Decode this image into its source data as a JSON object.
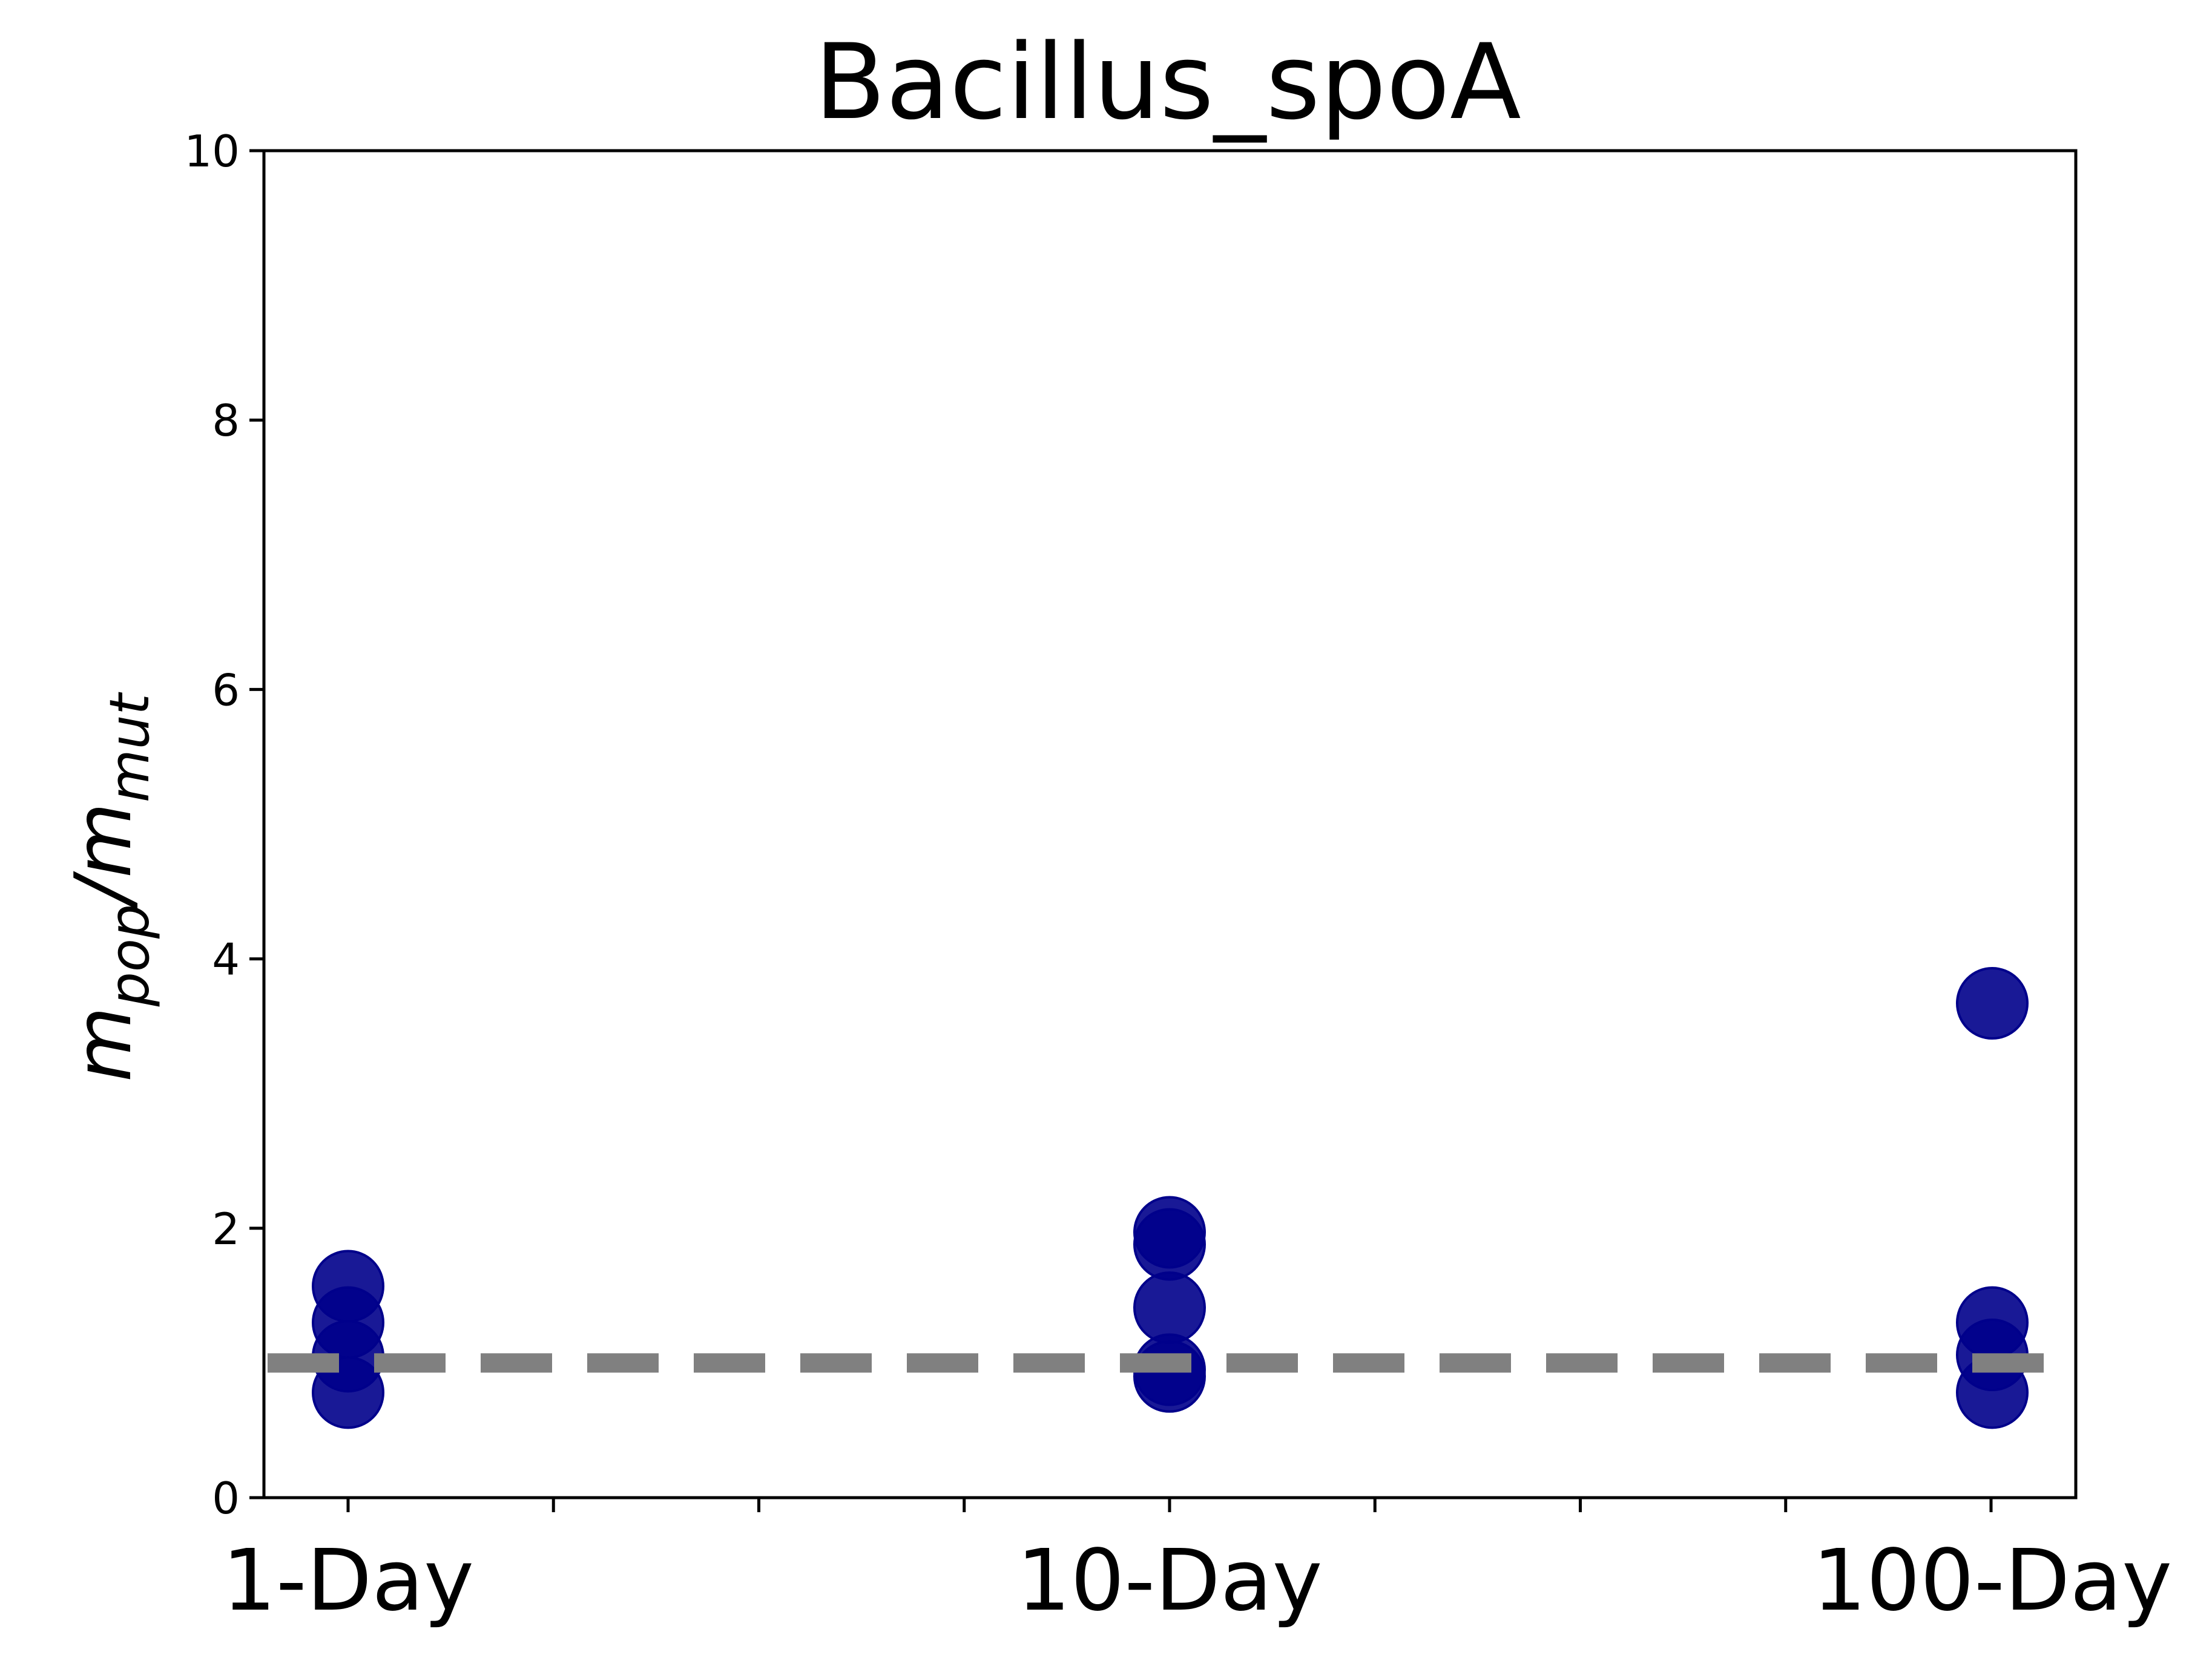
{
  "chart_data": {
    "type": "scatter",
    "title": "Bacillus_spoA",
    "ylabel": {
      "base1": "m",
      "sub1": "pop",
      "sep": "/",
      "base2": "m",
      "sub2": "mut"
    },
    "xlabel": "",
    "categories": [
      "1-Day",
      "10-Day",
      "100-Day"
    ],
    "ylim": [
      0,
      10
    ],
    "yticks": [
      "0",
      "2",
      "4",
      "6",
      "8",
      "10"
    ],
    "series": [
      {
        "points": [
          {
            "category": "1-Day",
            "y": 1.57
          },
          {
            "category": "1-Day",
            "y": 1.3
          },
          {
            "category": "1-Day",
            "y": 1.05
          },
          {
            "category": "1-Day",
            "y": 0.78
          },
          {
            "category": "10-Day",
            "y": 1.97
          },
          {
            "category": "10-Day",
            "y": 1.88
          },
          {
            "category": "10-Day",
            "y": 1.41
          },
          {
            "category": "10-Day",
            "y": 0.95
          },
          {
            "category": "10-Day",
            "y": 0.9
          },
          {
            "category": "100-Day",
            "y": 3.67
          },
          {
            "category": "100-Day",
            "y": 1.3
          },
          {
            "category": "100-Day",
            "y": 1.06
          },
          {
            "category": "100-Day",
            "y": 0.78
          }
        ]
      }
    ],
    "reference_line": {
      "y": 1.0,
      "style": "dashed"
    },
    "colors": {
      "marker": "#00008b",
      "reference_line": "#808080",
      "axes": "#000000"
    },
    "grid": false,
    "legend": "none"
  }
}
